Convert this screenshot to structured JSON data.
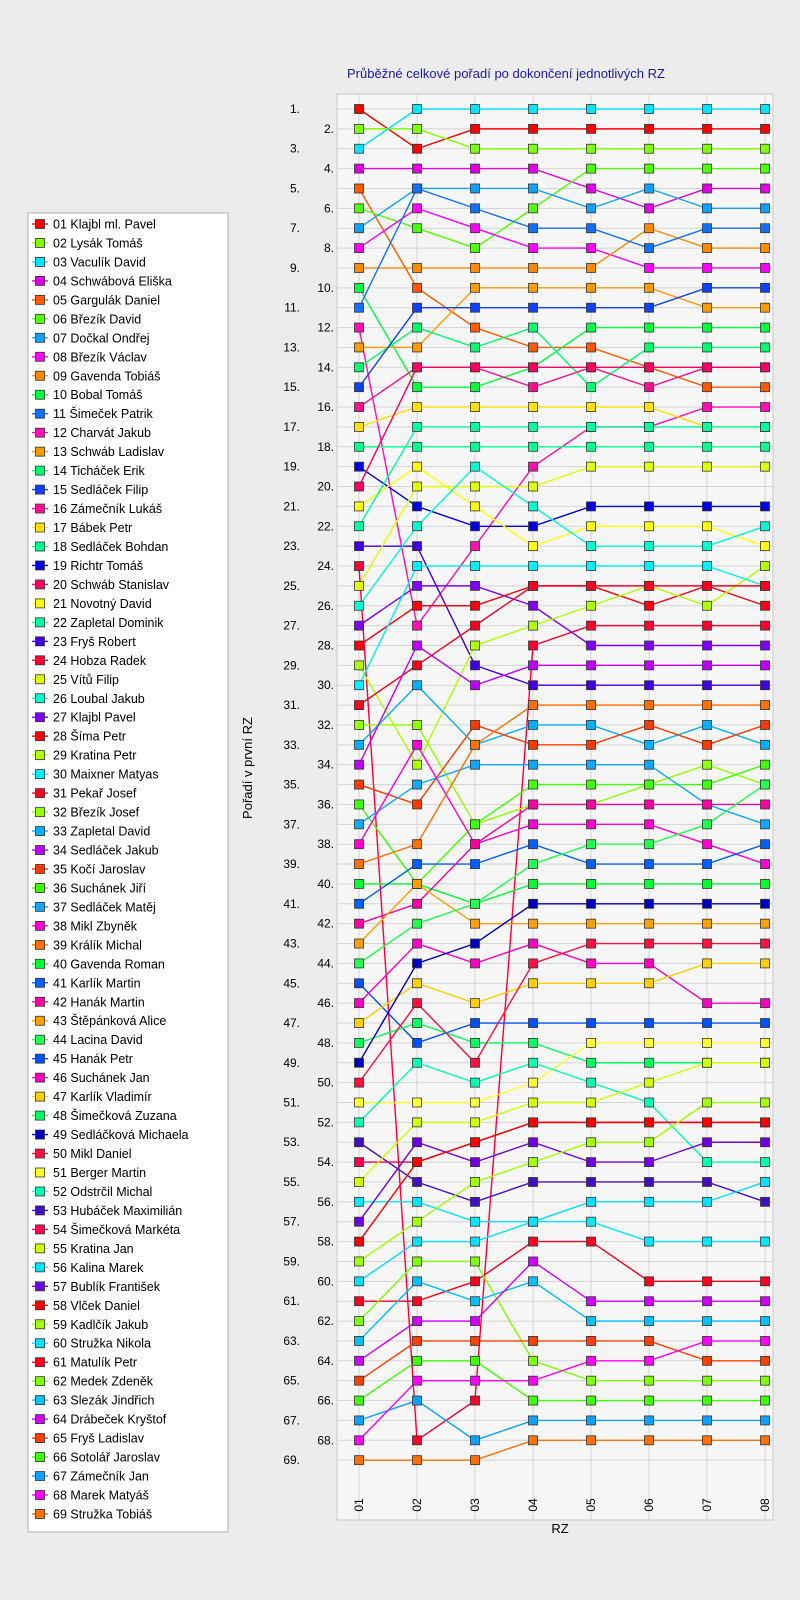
{
  "chart_data": {
    "type": "line",
    "title": "Průběžné celkové pořadí po dokončení jednotlivých RZ",
    "xlabel": "RZ",
    "ylabel": "Pořadí v první RZ",
    "x_categories": [
      "01",
      "02",
      "03",
      "04",
      "05",
      "06",
      "07",
      "08"
    ],
    "y_tick_labels": [
      "1.",
      "2.",
      "3.",
      "4.",
      "5.",
      "6.",
      "7.",
      "8.",
      "9.",
      "10.",
      "11.",
      "12.",
      "13.",
      "14.",
      "15.",
      "16.",
      "17.",
      "18.",
      "19.",
      "20.",
      "21.",
      "22.",
      "23.",
      "24.",
      "25.",
      "26.",
      "27.",
      "28.",
      "29.",
      "30.",
      "31.",
      "32.",
      "33.",
      "34.",
      "35.",
      "36.",
      "37.",
      "38.",
      "39.",
      "40.",
      "41.",
      "42.",
      "43.",
      "44.",
      "45.",
      "46.",
      "47.",
      "48.",
      "49.",
      "50.",
      "51.",
      "52.",
      "53.",
      "54.",
      "55.",
      "56.",
      "57.",
      "58.",
      "59.",
      "60.",
      "61.",
      "62.",
      "63.",
      "64.",
      "65.",
      "66.",
      "67.",
      "68.",
      "69."
    ],
    "ylim": [
      1,
      69
    ],
    "y_inverted": true,
    "grid": true,
    "legend_position": "left",
    "series": [
      {
        "name": "01 Klajbl ml. Pavel",
        "color": "#ff0000",
        "values": [
          1,
          3,
          2,
          2,
          2,
          2,
          2,
          2
        ]
      },
      {
        "name": "02 Lysák Tomáš",
        "color": "#80ff00",
        "values": [
          2,
          2,
          3,
          3,
          3,
          3,
          3,
          3
        ]
      },
      {
        "name": "03 Vaculík David",
        "color": "#00e5ff",
        "values": [
          3,
          1,
          1,
          1,
          1,
          1,
          1,
          1
        ]
      },
      {
        "name": "04 Schwábová Eliška",
        "color": "#e000e0",
        "values": [
          4,
          4,
          4,
          4,
          5,
          6,
          5,
          5
        ]
      },
      {
        "name": "05 Gargulák Daniel",
        "color": "#ff5a00",
        "values": [
          5,
          10,
          12,
          13,
          13,
          14,
          15,
          15
        ]
      },
      {
        "name": "06 Březík David",
        "color": "#50ff00",
        "values": [
          6,
          7,
          8,
          6,
          4,
          4,
          4,
          4
        ]
      },
      {
        "name": "07 Dočkal Ondřej",
        "color": "#10a0ff",
        "values": [
          7,
          5,
          5,
          5,
          6,
          5,
          6,
          6
        ]
      },
      {
        "name": "08 Březík Václav",
        "color": "#ff00ff",
        "values": [
          8,
          6,
          7,
          8,
          8,
          9,
          9,
          9
        ]
      },
      {
        "name": "09 Gavenda Tobiáš",
        "color": "#ff8a00",
        "values": [
          9,
          9,
          9,
          9,
          9,
          7,
          8,
          8
        ]
      },
      {
        "name": "10 Bobal Tomáš",
        "color": "#00ff40",
        "values": [
          10,
          15,
          15,
          14,
          12,
          12,
          12,
          12
        ]
      },
      {
        "name": "11 Šimeček Patrik",
        "color": "#1070ff",
        "values": [
          11,
          5,
          6,
          7,
          7,
          8,
          7,
          7
        ]
      },
      {
        "name": "12 Charvát Jakub",
        "color": "#ff10b0",
        "values": [
          12,
          27,
          23,
          19,
          17,
          17,
          16,
          16
        ]
      },
      {
        "name": "13 Schwáb Ladislav",
        "color": "#ff9a00",
        "values": [
          13,
          13,
          10,
          10,
          10,
          10,
          11,
          11
        ]
      },
      {
        "name": "14 Ticháček Erik",
        "color": "#00ff70",
        "values": [
          14,
          12,
          13,
          12,
          15,
          13,
          13,
          13
        ]
      },
      {
        "name": "15 Sedláček Filip",
        "color": "#1040ff",
        "values": [
          15,
          11,
          11,
          11,
          11,
          11,
          10,
          10
        ]
      },
      {
        "name": "16 Zámečník Lukáš",
        "color": "#ff1090",
        "values": [
          16,
          14,
          14,
          15,
          14,
          15,
          14,
          14
        ]
      },
      {
        "name": "17 Bábek Petr",
        "color": "#ffe000",
        "values": [
          17,
          16,
          16,
          16,
          16,
          16,
          17,
          17
        ]
      },
      {
        "name": "18 Sedláček Bohdan",
        "color": "#00ff90",
        "values": [
          18,
          18,
          18,
          18,
          18,
          18,
          18,
          18
        ]
      },
      {
        "name": "19 Richtr Tomáš",
        "color": "#0000e0",
        "values": [
          19,
          21,
          22,
          22,
          21,
          21,
          21,
          21
        ]
      },
      {
        "name": "20 Schwáb Stanislav",
        "color": "#ff0060",
        "values": [
          20,
          14,
          14,
          14,
          14,
          14,
          14,
          14
        ]
      },
      {
        "name": "21 Novotný David",
        "color": "#ffff00",
        "values": [
          21,
          19,
          21,
          23,
          22,
          22,
          22,
          23
        ]
      },
      {
        "name": "22 Zapletal Dominik",
        "color": "#00ffa0",
        "values": [
          22,
          17,
          17,
          17,
          17,
          17,
          17,
          17
        ]
      },
      {
        "name": "23 Fryš Robert",
        "color": "#4000e0",
        "values": [
          23,
          23,
          29,
          30,
          30,
          30,
          30,
          30
        ]
      },
      {
        "name": "24 Hobza Radek",
        "color": "#ff0030",
        "values": [
          24,
          68,
          66,
          28,
          27,
          27,
          27,
          27
        ]
      },
      {
        "name": "25 Vítů Filip",
        "color": "#e0ff00",
        "values": [
          25,
          20,
          20,
          20,
          19,
          19,
          19,
          19
        ]
      },
      {
        "name": "26 Loubal Jakub",
        "color": "#00ffd0",
        "values": [
          26,
          22,
          19,
          21,
          23,
          23,
          23,
          22
        ]
      },
      {
        "name": "27 Klajbl Pavel",
        "color": "#8000ff",
        "values": [
          27,
          25,
          25,
          26,
          28,
          28,
          28,
          28
        ]
      },
      {
        "name": "28 Šíma Petr",
        "color": "#ff0010",
        "values": [
          28,
          26,
          26,
          25,
          25,
          26,
          25,
          26
        ]
      },
      {
        "name": "29 Kratina Petr",
        "color": "#b0ff00",
        "values": [
          29,
          34,
          28,
          27,
          26,
          25,
          26,
          24
        ]
      },
      {
        "name": "30 Maixner Matyas",
        "color": "#00f0ff",
        "values": [
          30,
          24,
          24,
          24,
          24,
          24,
          24,
          25
        ]
      },
      {
        "name": "31 Pekař Josef",
        "color": "#ff0020",
        "values": [
          31,
          29,
          27,
          25,
          25,
          25,
          25,
          25
        ]
      },
      {
        "name": "32 Březík Josef",
        "color": "#90ff00",
        "values": [
          32,
          32,
          37,
          36,
          36,
          35,
          34,
          35
        ]
      },
      {
        "name": "33 Zapletal David",
        "color": "#00b0ff",
        "values": [
          33,
          30,
          33,
          32,
          32,
          33,
          32,
          33
        ]
      },
      {
        "name": "34 Sedláček Jakub",
        "color": "#c000ff",
        "values": [
          34,
          28,
          30,
          29,
          29,
          29,
          29,
          29
        ]
      },
      {
        "name": "35 Kočí Jaroslav",
        "color": "#ff3a00",
        "values": [
          35,
          36,
          32,
          33,
          33,
          32,
          33,
          32
        ]
      },
      {
        "name": "36 Suchánek Jiří",
        "color": "#40ff00",
        "values": [
          36,
          40,
          37,
          35,
          35,
          35,
          35,
          34
        ]
      },
      {
        "name": "37 Sedláček Matěj",
        "color": "#10a8ff",
        "values": [
          37,
          35,
          34,
          34,
          34,
          34,
          36,
          37
        ]
      },
      {
        "name": "38 Mikl Zbyněk",
        "color": "#ff00d0",
        "values": [
          38,
          33,
          38,
          37,
          37,
          37,
          38,
          39
        ]
      },
      {
        "name": "39 Králík Michal",
        "color": "#ff7000",
        "values": [
          39,
          38,
          33,
          31,
          31,
          31,
          31,
          31
        ]
      },
      {
        "name": "40 Gavenda Roman",
        "color": "#00ff30",
        "values": [
          40,
          40,
          41,
          40,
          40,
          40,
          40,
          40
        ]
      },
      {
        "name": "41 Karlík Martin",
        "color": "#0060ff",
        "values": [
          41,
          39,
          39,
          38,
          39,
          39,
          39,
          38
        ]
      },
      {
        "name": "42 Hanák Martin",
        "color": "#ff00a0",
        "values": [
          42,
          41,
          38,
          36,
          36,
          36,
          36,
          36
        ]
      },
      {
        "name": "43 Štěpánková Alice",
        "color": "#ffa000",
        "values": [
          43,
          40,
          42,
          42,
          42,
          42,
          42,
          42
        ]
      },
      {
        "name": "44 Lacina David",
        "color": "#20ff50",
        "values": [
          44,
          42,
          41,
          39,
          38,
          38,
          37,
          35
        ]
      },
      {
        "name": "45 Hanák Petr",
        "color": "#0050ff",
        "values": [
          45,
          48,
          47,
          47,
          47,
          47,
          47,
          47
        ]
      },
      {
        "name": "46 Suchánek Jan",
        "color": "#ff00c0",
        "values": [
          46,
          43,
          44,
          43,
          44,
          44,
          46,
          46
        ]
      },
      {
        "name": "47 Karlík Vladimír",
        "color": "#ffd000",
        "values": [
          47,
          45,
          46,
          45,
          45,
          45,
          44,
          44
        ]
      },
      {
        "name": "48 Šimečková Zuzana",
        "color": "#00ff60",
        "values": [
          48,
          47,
          48,
          48,
          49,
          49,
          49,
          49
        ]
      },
      {
        "name": "49 Sedláčková Michaela",
        "color": "#0000c0",
        "values": [
          49,
          44,
          43,
          41,
          41,
          41,
          41,
          41
        ]
      },
      {
        "name": "50 Mikl Daniel",
        "color": "#ff1040",
        "values": [
          50,
          46,
          49,
          44,
          43,
          43,
          43,
          43
        ]
      },
      {
        "name": "51 Berger Martin",
        "color": "#ffff30",
        "values": [
          51,
          51,
          51,
          50,
          48,
          48,
          48,
          48
        ]
      },
      {
        "name": "52 Odstrčil Michal",
        "color": "#00ffb0",
        "values": [
          52,
          49,
          50,
          49,
          50,
          51,
          54,
          54
        ]
      },
      {
        "name": "53 Hubáček Maximilián",
        "color": "#4010c0",
        "values": [
          53,
          55,
          56,
          55,
          55,
          55,
          55,
          56
        ]
      },
      {
        "name": "54 Šimečková Markéta",
        "color": "#ff0050",
        "values": [
          54,
          54,
          53,
          52,
          52,
          52,
          52,
          52
        ]
      },
      {
        "name": "55 Kratina Jan",
        "color": "#d0ff00",
        "values": [
          55,
          52,
          52,
          51,
          51,
          50,
          49,
          49
        ]
      },
      {
        "name": "56 Kalina Marek",
        "color": "#00e8ff",
        "values": [
          56,
          56,
          57,
          57,
          57,
          58,
          58,
          58
        ]
      },
      {
        "name": "57 Bublík František",
        "color": "#7000e0",
        "values": [
          57,
          53,
          54,
          53,
          54,
          54,
          53,
          53
        ]
      },
      {
        "name": "58 Vlček Daniel",
        "color": "#ff0000",
        "values": [
          58,
          54,
          53,
          52,
          52,
          52,
          52,
          52
        ]
      },
      {
        "name": "59 Kadlčík Jakub",
        "color": "#a0ff00",
        "values": [
          59,
          57,
          55,
          54,
          53,
          53,
          51,
          51
        ]
      },
      {
        "name": "60 Stružka Nikola",
        "color": "#00e0ff",
        "values": [
          60,
          58,
          58,
          57,
          56,
          56,
          56,
          55
        ]
      },
      {
        "name": "61 Matulík Petr",
        "color": "#ff0020",
        "values": [
          61,
          61,
          60,
          58,
          58,
          60,
          60,
          60
        ]
      },
      {
        "name": "62 Medek Zdeněk",
        "color": "#80ff00",
        "values": [
          62,
          59,
          59,
          64,
          65,
          65,
          65,
          65
        ]
      },
      {
        "name": "63 Slezák Jindřich",
        "color": "#00c0ff",
        "values": [
          63,
          60,
          61,
          60,
          62,
          62,
          62,
          62
        ]
      },
      {
        "name": "64 Drábeček Kryštof",
        "color": "#d000ff",
        "values": [
          64,
          62,
          62,
          59,
          61,
          61,
          61,
          61
        ]
      },
      {
        "name": "65 Fryš Ladislav",
        "color": "#ff4000",
        "values": [
          65,
          63,
          63,
          63,
          63,
          63,
          64,
          64
        ]
      },
      {
        "name": "66 Sotolář Jaroslav",
        "color": "#40ff00",
        "values": [
          66,
          64,
          64,
          66,
          66,
          66,
          66,
          66
        ]
      },
      {
        "name": "67 Zámečník Jan",
        "color": "#10a0ff",
        "values": [
          67,
          66,
          68,
          67,
          67,
          67,
          67,
          67
        ]
      },
      {
        "name": "68 Marek Matyáš",
        "color": "#ff00ff",
        "values": [
          68,
          65,
          65,
          65,
          64,
          64,
          63,
          63
        ]
      },
      {
        "name": "69 Stružka Tobiáš",
        "color": "#ff7000",
        "values": [
          69,
          69,
          69,
          68,
          68,
          68,
          68,
          68
        ]
      }
    ]
  }
}
